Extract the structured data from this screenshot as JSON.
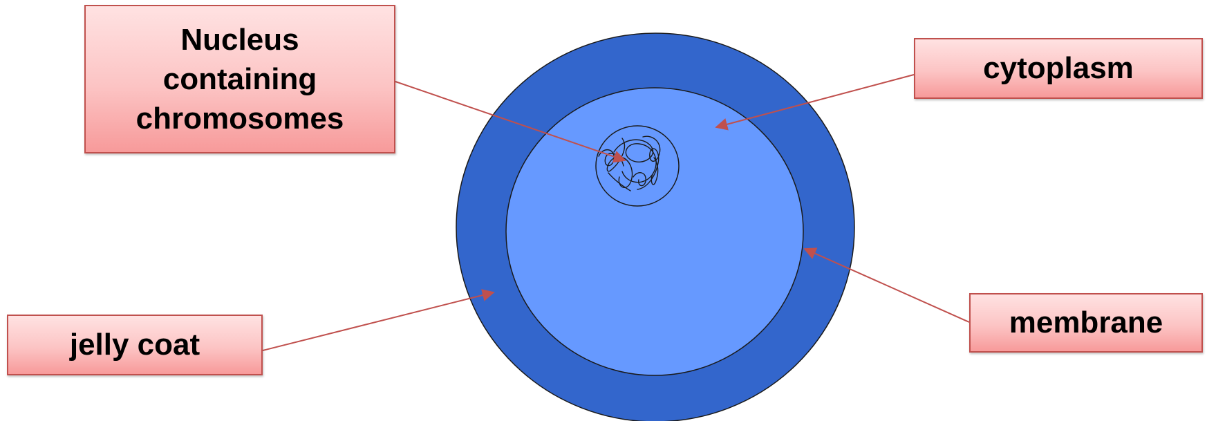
{
  "labels": {
    "nucleus": "Nucleus containing chromosomes",
    "cytoplasm": "cytoplasm",
    "membrane": "membrane",
    "jelly_coat": "jelly coat"
  },
  "colors": {
    "jelly_coat": "#3366cc",
    "cytoplasm": "#6699ff",
    "pointer_line": "#c0504d",
    "label_fill_top": "#ffe2e2",
    "label_fill_bottom": "#f79a9a"
  }
}
